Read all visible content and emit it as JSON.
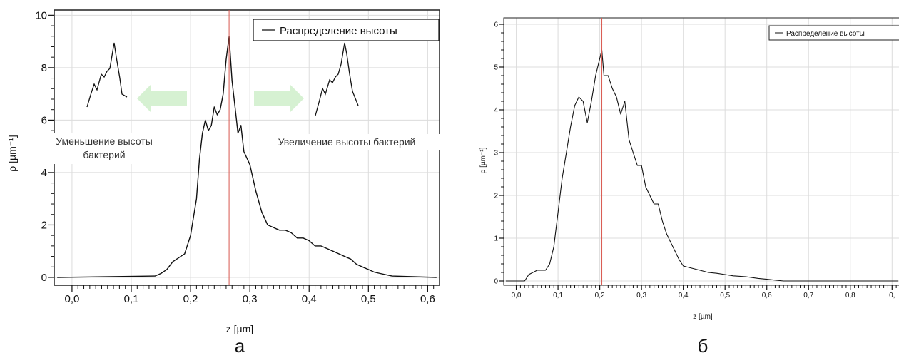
{
  "chart_data": [
    {
      "type": "line",
      "panel_label": "a",
      "xlabel": "z [µm]",
      "ylabel": "ρ [µm⁻¹]",
      "xlim": [
        -0.03,
        0.62
      ],
      "ylim": [
        -0.3,
        10.2
      ],
      "x_ticks": [
        "0,0",
        "0,1",
        "0,2",
        "0,3",
        "0,4",
        "0,5",
        "0,6"
      ],
      "y_ticks": [
        "0",
        "2",
        "4",
        "6",
        "8",
        "10"
      ],
      "grid": true,
      "legend": {
        "entries": [
          "Распределение высоты"
        ],
        "placement": "top-right"
      },
      "marker_line_x": 0.265,
      "series": [
        {
          "name": "Распределение высоты",
          "x": [
            0.14,
            0.15,
            0.16,
            0.17,
            0.18,
            0.19,
            0.2,
            0.205,
            0.21,
            0.215,
            0.22,
            0.225,
            0.23,
            0.235,
            0.24,
            0.245,
            0.25,
            0.255,
            0.26,
            0.265,
            0.27,
            0.275,
            0.28,
            0.285,
            0.29,
            0.3,
            0.31,
            0.32,
            0.33,
            0.34,
            0.35,
            0.36,
            0.37,
            0.38,
            0.39,
            0.4,
            0.41,
            0.42,
            0.43,
            0.44,
            0.45,
            0.46,
            0.47,
            0.48,
            0.49,
            0.5,
            0.51,
            0.52,
            0.53,
            0.54
          ],
          "y": [
            0.05,
            0.15,
            0.3,
            0.6,
            0.75,
            0.9,
            1.6,
            2.3,
            3.0,
            4.5,
            5.5,
            6.0,
            5.6,
            5.8,
            6.5,
            6.2,
            6.4,
            7.0,
            8.3,
            9.2,
            7.5,
            6.5,
            5.5,
            5.8,
            4.8,
            4.3,
            3.3,
            2.5,
            2.0,
            1.9,
            1.8,
            1.8,
            1.7,
            1.5,
            1.5,
            1.4,
            1.2,
            1.2,
            1.1,
            1.0,
            0.9,
            0.8,
            0.7,
            0.5,
            0.4,
            0.3,
            0.2,
            0.15,
            0.1,
            0.05
          ]
        }
      ],
      "annotations": {
        "left_line1": "Уменьшение высоты",
        "left_line2": "бактерий",
        "right": "Увеличение высоты бактерий"
      }
    },
    {
      "type": "line",
      "panel_label": "б",
      "xlabel": "z [µm]",
      "ylabel": "ρ [µm⁻¹]",
      "xlim": [
        -0.03,
        0.92
      ],
      "ylim": [
        -0.1,
        6.15
      ],
      "x_ticks": [
        "0,0",
        "0,1",
        "0,2",
        "0,3",
        "0,4",
        "0,5",
        "0,6",
        "0,7",
        "0,8",
        "0,"
      ],
      "y_ticks": [
        "0",
        "1",
        "2",
        "3",
        "4",
        "5",
        "6"
      ],
      "grid": true,
      "legend": {
        "entries": [
          "Распределение высоты"
        ],
        "placement": "top-right"
      },
      "marker_line_x": 0.205,
      "series": [
        {
          "name": "Распределение высоты",
          "x": [
            0.02,
            0.03,
            0.05,
            0.07,
            0.08,
            0.09,
            0.1,
            0.11,
            0.12,
            0.13,
            0.14,
            0.15,
            0.16,
            0.17,
            0.18,
            0.19,
            0.2,
            0.205,
            0.21,
            0.22,
            0.23,
            0.24,
            0.25,
            0.26,
            0.27,
            0.28,
            0.29,
            0.3,
            0.31,
            0.32,
            0.33,
            0.34,
            0.35,
            0.36,
            0.37,
            0.38,
            0.39,
            0.4,
            0.42,
            0.44,
            0.46,
            0.48,
            0.5,
            0.52,
            0.55,
            0.58,
            0.6,
            0.62,
            0.64,
            0.66
          ],
          "y": [
            0.0,
            0.15,
            0.25,
            0.25,
            0.4,
            0.8,
            1.6,
            2.4,
            3.0,
            3.6,
            4.1,
            4.3,
            4.2,
            3.7,
            4.2,
            4.8,
            5.2,
            5.4,
            4.8,
            4.8,
            4.5,
            4.3,
            3.9,
            4.2,
            3.3,
            3.0,
            2.7,
            2.7,
            2.2,
            2.0,
            1.8,
            1.8,
            1.4,
            1.1,
            0.9,
            0.7,
            0.5,
            0.35,
            0.3,
            0.25,
            0.2,
            0.18,
            0.15,
            0.12,
            0.1,
            0.06,
            0.04,
            0.02,
            0.0,
            0.0
          ]
        }
      ]
    }
  ]
}
